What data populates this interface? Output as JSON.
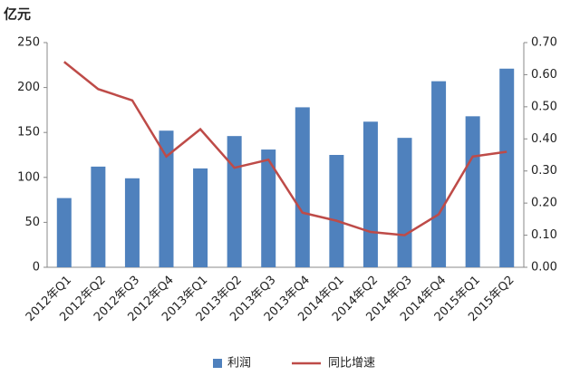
{
  "chart_data": {
    "type": "bar",
    "y_label": "亿元",
    "categories": [
      "2012年Q1",
      "2012年Q2",
      "2012年Q3",
      "2012年Q4",
      "2013年Q1",
      "2013年Q2",
      "2013年Q3",
      "2013年Q4",
      "2014年Q1",
      "2014年Q2",
      "2014年Q3",
      "2014年Q4",
      "2015年Q1",
      "2015年Q2"
    ],
    "series": [
      {
        "name": "利润",
        "type": "bar",
        "color": "#4f81bd",
        "values": [
          77,
          112,
          99,
          152,
          110,
          146,
          131,
          178,
          125,
          162,
          144,
          207,
          168,
          221
        ]
      },
      {
        "name": "同比增速",
        "type": "line",
        "axis": "y2",
        "color": "#be4b48",
        "values": [
          0.64,
          0.555,
          0.52,
          0.345,
          0.43,
          0.31,
          0.335,
          0.17,
          0.145,
          0.11,
          0.1,
          0.165,
          0.345,
          0.36
        ]
      }
    ],
    "ylim": [
      0,
      250
    ],
    "yticks": [
      0,
      50,
      100,
      150,
      200,
      250
    ],
    "y2lim": [
      0,
      0.7
    ],
    "y2ticks": [
      {
        "value": 0,
        "label": "0.00"
      },
      {
        "value": 0.1,
        "label": "0.10"
      },
      {
        "value": 0.2,
        "label": "0.20"
      },
      {
        "value": 0.3,
        "label": "0.30"
      },
      {
        "value": 0.4,
        "label": "0.40"
      },
      {
        "value": 0.5,
        "label": "0.50"
      },
      {
        "value": 0.6,
        "label": "0.60"
      },
      {
        "value": 0.7,
        "label": "0.70"
      }
    ],
    "legend": "bottom"
  }
}
